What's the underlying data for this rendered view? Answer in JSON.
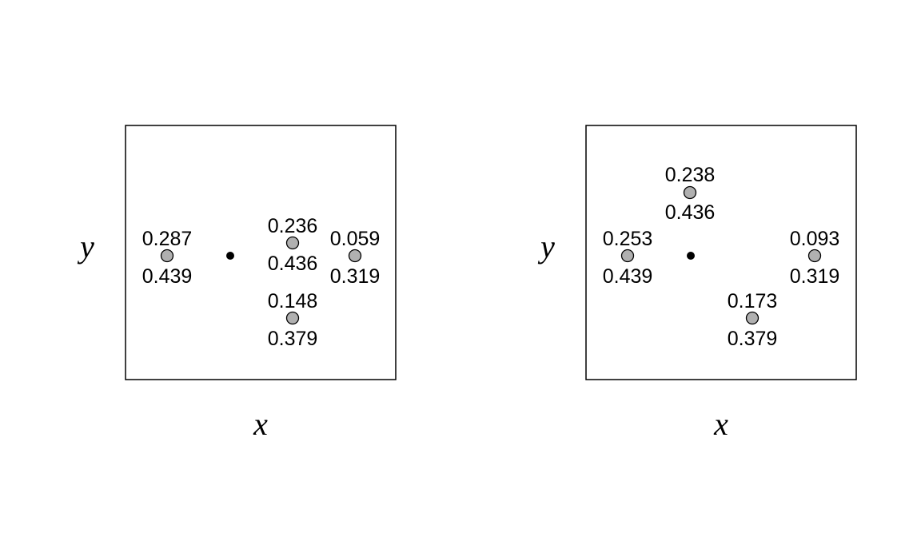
{
  "panels": [
    {
      "xlabel": "x",
      "ylabel": "y",
      "points": [
        {
          "upper": "0.287",
          "lower": "0.439"
        },
        {
          "upper": "0.236",
          "lower": "0.436"
        },
        {
          "upper": "0.059",
          "lower": "0.319"
        },
        {
          "upper": "0.148",
          "lower": "0.379"
        }
      ]
    },
    {
      "xlabel": "x",
      "ylabel": "y",
      "points": [
        {
          "upper": "0.253",
          "lower": "0.439"
        },
        {
          "upper": "0.238",
          "lower": "0.436"
        },
        {
          "upper": "0.093",
          "lower": "0.319"
        },
        {
          "upper": "0.173",
          "lower": "0.379"
        }
      ]
    }
  ],
  "colors": {
    "point_fill": "#b0b0b0",
    "center_dot": "#000000",
    "frame": "#000000"
  }
}
